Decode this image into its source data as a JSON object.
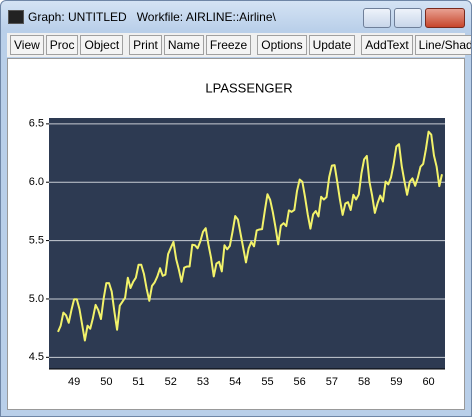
{
  "window": {
    "title": "Graph: UNTITLED   Workfile: AIRLINE::Airline\\"
  },
  "toolbar": {
    "groups": [
      [
        "View",
        "Proc",
        "Object"
      ],
      [
        "Print",
        "Name",
        "Freeze"
      ],
      [
        "Options",
        "Update"
      ],
      [
        "AddText",
        "Line/Shade"
      ]
    ]
  },
  "chart_data": {
    "type": "line",
    "title": "LPASSENGER",
    "color": "#f2f26a",
    "grid": true,
    "categories": [
      null,
      null,
      null,
      null,
      null,
      null,
      "49",
      null,
      null,
      null,
      null,
      null,
      null,
      null,
      null,
      null,
      null,
      null,
      "50",
      null,
      null,
      null,
      null,
      null,
      null,
      null,
      null,
      null,
      null,
      null,
      "51",
      null,
      null,
      null,
      null,
      null,
      null,
      null,
      null,
      null,
      null,
      null,
      "52",
      null,
      null,
      null,
      null,
      null,
      null,
      null,
      null,
      null,
      null,
      null,
      "53",
      null,
      null,
      null,
      null,
      null,
      null,
      null,
      null,
      null,
      null,
      null,
      "54",
      null,
      null,
      null,
      null,
      null,
      null,
      null,
      null,
      null,
      null,
      null,
      "55",
      null,
      null,
      null,
      null,
      null,
      null,
      null,
      null,
      null,
      null,
      null,
      "56",
      null,
      null,
      null,
      null,
      null,
      null,
      null,
      null,
      null,
      null,
      null,
      "57",
      null,
      null,
      null,
      null,
      null,
      null,
      null,
      null,
      null,
      null,
      null,
      "58",
      null,
      null,
      null,
      null,
      null,
      null,
      null,
      null,
      null,
      null,
      null,
      "59",
      null,
      null,
      null,
      null,
      null,
      null,
      null,
      null,
      null,
      null,
      null,
      "60",
      null,
      null,
      null,
      null,
      null
    ],
    "values": [
      4.718,
      4.771,
      4.883,
      4.86,
      4.796,
      4.905,
      4.997,
      4.997,
      4.913,
      4.779,
      4.644,
      4.771,
      4.745,
      4.836,
      4.949,
      4.905,
      4.828,
      5.004,
      5.136,
      5.136,
      5.063,
      4.89,
      4.736,
      4.942,
      4.977,
      5.011,
      5.182,
      5.094,
      5.147,
      5.182,
      5.293,
      5.293,
      5.215,
      5.088,
      4.984,
      5.112,
      5.142,
      5.193,
      5.263,
      5.198,
      5.209,
      5.384,
      5.438,
      5.489,
      5.342,
      5.252,
      5.147,
      5.268,
      5.278,
      5.278,
      5.464,
      5.46,
      5.434,
      5.493,
      5.576,
      5.606,
      5.468,
      5.352,
      5.193,
      5.303,
      5.318,
      5.236,
      5.46,
      5.425,
      5.455,
      5.576,
      5.71,
      5.68,
      5.557,
      5.434,
      5.313,
      5.434,
      5.489,
      5.451,
      5.587,
      5.595,
      5.598,
      5.753,
      5.897,
      5.849,
      5.743,
      5.613,
      5.468,
      5.628,
      5.649,
      5.624,
      5.759,
      5.746,
      5.762,
      5.924,
      6.023,
      6.004,
      5.872,
      5.724,
      5.602,
      5.724,
      5.753,
      5.707,
      5.875,
      5.852,
      5.872,
      6.045,
      6.142,
      6.146,
      6.001,
      5.849,
      5.72,
      5.817,
      5.829,
      5.762,
      5.892,
      5.852,
      5.894,
      6.075,
      6.196,
      6.225,
      6.001,
      5.883,
      5.737,
      5.82,
      5.886,
      5.835,
      6.006,
      5.981,
      6.04,
      6.157,
      6.306,
      6.326,
      6.138,
      6.009,
      5.892,
      6.004,
      6.033,
      5.969,
      6.038,
      6.133,
      6.157,
      6.282,
      6.433,
      6.407,
      6.23,
      6.133,
      5.966,
      6.068
    ],
    "ylim": [
      4.4,
      6.55
    ],
    "yticks": [
      4.5,
      {
        "value": 5,
        "label": "5.0"
      },
      5.5,
      {
        "value": 6,
        "label": "6.0"
      },
      6.5
    ]
  }
}
